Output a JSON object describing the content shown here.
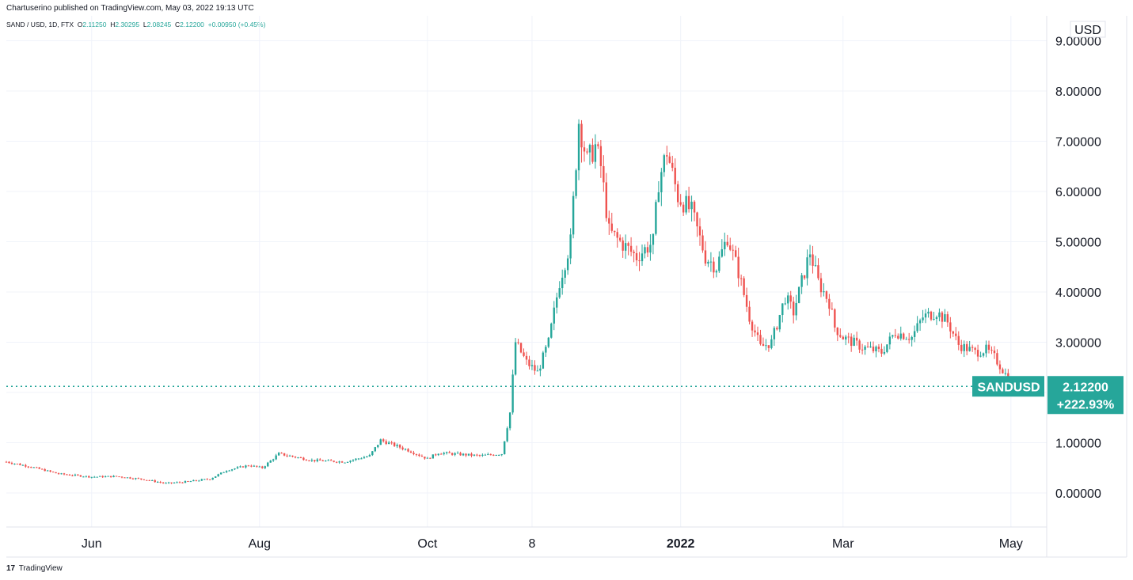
{
  "header": {
    "published": "Chartuserino published on TradingView.com, May 03, 2022 19:13 UTC"
  },
  "legend": {
    "symbol": "SAND / USD, 1D, FTX",
    "o_label": "O",
    "o": "2.11250",
    "h_label": "H",
    "h": "2.30295",
    "l_label": "L",
    "l": "2.08245",
    "c_label": "C",
    "c": "2.12200",
    "change": "+0.00950 (+0.45%)"
  },
  "footer": {
    "brand": "TradingView",
    "logo_text": "17"
  },
  "colors": {
    "up": "#26a69a",
    "down": "#ef5350",
    "grid": "#f0f3fa",
    "axis_border": "#e0e3eb",
    "label_bg": "#26a69a",
    "text": "#131722"
  },
  "chart_data": {
    "type": "candlestick",
    "currency": "USD",
    "ylim": [
      -0.7,
      9.3
    ],
    "ticks_y": [
      "0.00000",
      "1.00000",
      "2.00000",
      "3.00000",
      "4.00000",
      "5.00000",
      "6.00000",
      "7.00000",
      "8.00000",
      "9.00000"
    ],
    "ticks_x": [
      {
        "label": "Jun",
        "date": "2021-06-01",
        "bold": false
      },
      {
        "label": "Aug",
        "date": "2021-08-01",
        "bold": false
      },
      {
        "label": "Oct",
        "date": "2021-10-01",
        "bold": false
      },
      {
        "label": "8",
        "date": "2021-11-08",
        "bold": false
      },
      {
        "label": "2022",
        "date": "2022-01-01",
        "bold": true
      },
      {
        "label": "Mar",
        "date": "2022-03-01",
        "bold": false
      },
      {
        "label": "May",
        "date": "2022-05-01",
        "bold": false
      }
    ],
    "x_start": "2021-05-01",
    "x_end": "2022-05-14",
    "last_price": {
      "symbol": "SANDUSD",
      "price": "2.12200",
      "change_pct": "+222.93%",
      "value": 2.122
    },
    "price_path_daily_closes": [
      [
        "2021-05-01",
        0.62
      ],
      [
        "2021-05-10",
        0.52
      ],
      [
        "2021-05-20",
        0.38
      ],
      [
        "2021-06-01",
        0.32
      ],
      [
        "2021-06-10",
        0.33
      ],
      [
        "2021-06-20",
        0.27
      ],
      [
        "2021-06-28",
        0.19
      ],
      [
        "2021-07-05",
        0.22
      ],
      [
        "2021-07-14",
        0.28
      ],
      [
        "2021-07-20",
        0.45
      ],
      [
        "2021-07-28",
        0.55
      ],
      [
        "2021-08-02",
        0.5
      ],
      [
        "2021-08-08",
        0.78
      ],
      [
        "2021-08-20",
        0.65
      ],
      [
        "2021-09-01",
        0.62
      ],
      [
        "2021-09-10",
        0.74
      ],
      [
        "2021-09-14",
        1.05
      ],
      [
        "2021-09-24",
        0.85
      ],
      [
        "2021-10-01",
        0.68
      ],
      [
        "2021-10-05",
        0.8
      ],
      [
        "2021-10-20",
        0.74
      ],
      [
        "2021-10-28",
        0.78
      ],
      [
        "2021-10-31",
        1.6
      ],
      [
        "2021-11-02",
        3.0
      ],
      [
        "2021-11-06",
        2.6
      ],
      [
        "2021-11-10",
        2.4
      ],
      [
        "2021-11-14",
        3.0
      ],
      [
        "2021-11-18",
        4.2
      ],
      [
        "2021-11-22",
        5.0
      ],
      [
        "2021-11-25",
        7.4
      ],
      [
        "2021-11-28",
        6.6
      ],
      [
        "2021-12-01",
        6.9
      ],
      [
        "2021-12-03",
        6.5
      ],
      [
        "2021-12-06",
        5.2
      ],
      [
        "2021-12-10",
        5.0
      ],
      [
        "2021-12-16",
        4.7
      ],
      [
        "2021-12-22",
        5.0
      ],
      [
        "2021-12-24",
        6.2
      ],
      [
        "2021-12-27",
        6.8
      ],
      [
        "2021-12-31",
        5.9
      ],
      [
        "2022-01-05",
        5.6
      ],
      [
        "2022-01-10",
        4.7
      ],
      [
        "2022-01-14",
        4.5
      ],
      [
        "2022-01-18",
        5.1
      ],
      [
        "2022-01-22",
        4.4
      ],
      [
        "2022-01-26",
        3.5
      ],
      [
        "2022-01-30",
        2.9
      ],
      [
        "2022-02-03",
        3.0
      ],
      [
        "2022-02-08",
        3.9
      ],
      [
        "2022-02-11",
        3.6
      ],
      [
        "2022-02-14",
        4.2
      ],
      [
        "2022-02-17",
        4.8
      ],
      [
        "2022-02-20",
        4.2
      ],
      [
        "2022-02-24",
        3.8
      ],
      [
        "2022-02-26",
        3.3
      ],
      [
        "2022-03-01",
        3.1
      ],
      [
        "2022-03-08",
        2.9
      ],
      [
        "2022-03-15",
        2.8
      ],
      [
        "2022-03-20",
        3.2
      ],
      [
        "2022-03-26",
        3.1
      ],
      [
        "2022-03-30",
        3.5
      ],
      [
        "2022-04-04",
        3.6
      ],
      [
        "2022-04-08",
        3.4
      ],
      [
        "2022-04-12",
        2.95
      ],
      [
        "2022-04-18",
        2.8
      ],
      [
        "2022-04-22",
        2.85
      ],
      [
        "2022-04-25",
        2.7
      ],
      [
        "2022-04-28",
        2.45
      ],
      [
        "2022-05-02",
        2.11
      ],
      [
        "2022-05-03",
        2.122
      ]
    ]
  }
}
